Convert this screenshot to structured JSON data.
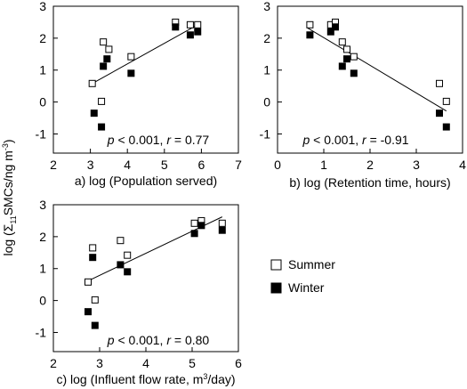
{
  "shared": {
    "ylabel_parts": [
      "log (Σ",
      "11",
      "SMCs/ng m",
      "-3",
      ")"
    ],
    "yticks": [
      -1,
      0,
      1,
      2,
      3
    ],
    "ylim": [
      -1.6,
      3
    ]
  },
  "legend": [
    {
      "label": "Summer",
      "style": "open-square"
    },
    {
      "label": "Winter",
      "style": "filled-square"
    }
  ],
  "chart_data": [
    {
      "type": "scatter",
      "xlabel": "a) log (Population served)",
      "xlim": [
        2,
        7
      ],
      "xticks": [
        2,
        3,
        4,
        5,
        6,
        7
      ],
      "annotation": {
        "p": "p",
        "p_text": " < 0.001, ",
        "r": "r",
        "r_text": " = 0.77"
      },
      "trendline": [
        [
          3.05,
          0.58
        ],
        [
          5.9,
          2.42
        ]
      ],
      "series": [
        {
          "name": "Summer",
          "points": [
            [
              3.05,
              0.58
            ],
            [
              3.3,
              0.02
            ],
            [
              3.35,
              1.88
            ],
            [
              3.5,
              1.65
            ],
            [
              4.1,
              1.42
            ],
            [
              5.3,
              2.5
            ],
            [
              5.7,
              2.42
            ],
            [
              5.9,
              2.42
            ]
          ]
        },
        {
          "name": "Winter",
          "points": [
            [
              3.1,
              -0.35
            ],
            [
              3.3,
              -0.78
            ],
            [
              3.35,
              1.12
            ],
            [
              3.45,
              1.35
            ],
            [
              4.1,
              0.9
            ],
            [
              5.3,
              2.35
            ],
            [
              5.7,
              2.1
            ],
            [
              5.9,
              2.2
            ]
          ]
        }
      ]
    },
    {
      "type": "scatter",
      "xlabel": "b) log (Retention time, hours)",
      "xlim": [
        0,
        4
      ],
      "xticks": [
        0,
        1,
        2,
        3,
        4
      ],
      "annotation": {
        "p": "p",
        "p_text": " < 0.001, ",
        "r": "r",
        "r_text": " = -0.91"
      },
      "trendline": [
        [
          0.65,
          2.32
        ],
        [
          3.65,
          -0.28
        ]
      ],
      "series": [
        {
          "name": "Summer",
          "points": [
            [
              0.7,
              2.42
            ],
            [
              1.15,
              2.42
            ],
            [
              1.25,
              2.5
            ],
            [
              1.4,
              1.88
            ],
            [
              1.5,
              1.65
            ],
            [
              1.65,
              1.42
            ],
            [
              3.5,
              0.58
            ],
            [
              3.65,
              0.02
            ]
          ]
        },
        {
          "name": "Winter",
          "points": [
            [
              0.7,
              2.1
            ],
            [
              1.15,
              2.2
            ],
            [
              1.25,
              2.35
            ],
            [
              1.4,
              1.12
            ],
            [
              1.5,
              1.35
            ],
            [
              1.65,
              0.9
            ],
            [
              3.5,
              -0.35
            ],
            [
              3.65,
              -0.78
            ]
          ]
        }
      ]
    },
    {
      "type": "scatter",
      "xlabel_parts": [
        "c) log (Influent flow rate, m",
        "3",
        "/day)"
      ],
      "xlim": [
        2,
        6
      ],
      "xticks": [
        2,
        3,
        4,
        5,
        6
      ],
      "annotation": {
        "p": "p",
        "p_text": " < 0.001, ",
        "r": "r",
        "r_text": " = 0.80"
      },
      "trendline": [
        [
          2.7,
          0.58
        ],
        [
          5.65,
          2.62
        ]
      ],
      "series": [
        {
          "name": "Summer",
          "points": [
            [
              2.75,
              0.58
            ],
            [
              2.85,
              1.65
            ],
            [
              2.9,
              0.02
            ],
            [
              3.45,
              1.88
            ],
            [
              3.6,
              1.42
            ],
            [
              5.05,
              2.42
            ],
            [
              5.2,
              2.5
            ],
            [
              5.65,
              2.42
            ]
          ]
        },
        {
          "name": "Winter",
          "points": [
            [
              2.75,
              -0.35
            ],
            [
              2.85,
              1.35
            ],
            [
              2.9,
              -0.78
            ],
            [
              3.45,
              1.12
            ],
            [
              3.6,
              0.9
            ],
            [
              5.05,
              2.1
            ],
            [
              5.2,
              2.35
            ],
            [
              5.65,
              2.2
            ]
          ]
        }
      ]
    }
  ]
}
